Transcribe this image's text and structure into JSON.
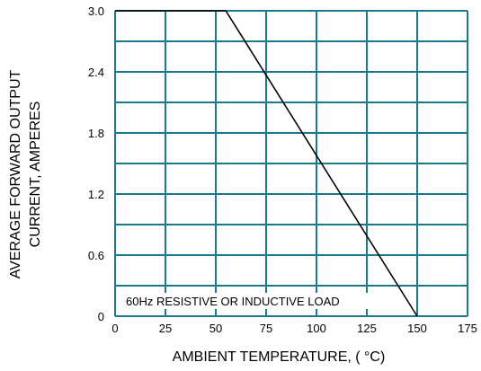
{
  "chart_data": {
    "type": "line",
    "title": "",
    "xlabel": "AMBIENT TEMPERATURE, ( °C)",
    "ylabel_lines": [
      "AVERAGE FORWARD OUTPUT",
      "CURRENT, AMPERES"
    ],
    "xlim": [
      0,
      175
    ],
    "ylim": [
      0,
      3.0
    ],
    "x_ticks": [
      0,
      25,
      50,
      75,
      100,
      125,
      150,
      175
    ],
    "x_tick_labels": [
      "0",
      "25",
      "50",
      "75",
      "100",
      "125",
      "150",
      "175"
    ],
    "x_grid": [
      0,
      25,
      50,
      75,
      100,
      125,
      150,
      175
    ],
    "y_ticks": [
      0,
      0.6,
      1.2,
      1.8,
      2.4,
      3.0
    ],
    "y_tick_labels": [
      "0",
      "0.6",
      "1.2",
      "1.8",
      "2.4",
      "3.0"
    ],
    "y_grid": [
      0,
      0.3,
      0.6,
      0.9,
      1.2,
      1.5,
      1.8,
      2.1,
      2.4,
      2.7,
      3.0
    ],
    "grid": true,
    "series": [
      {
        "x": [
          0,
          55,
          150
        ],
        "y": [
          3.0,
          3.0,
          0
        ]
      }
    ],
    "annotation": "60Hz RESISTIVE OR INDUCTIVE LOAD",
    "annotation_x_range": [
      0,
      175
    ],
    "annotation_y": 0.15,
    "grid_color": "#1a7a8c",
    "line_color": "#000000"
  }
}
